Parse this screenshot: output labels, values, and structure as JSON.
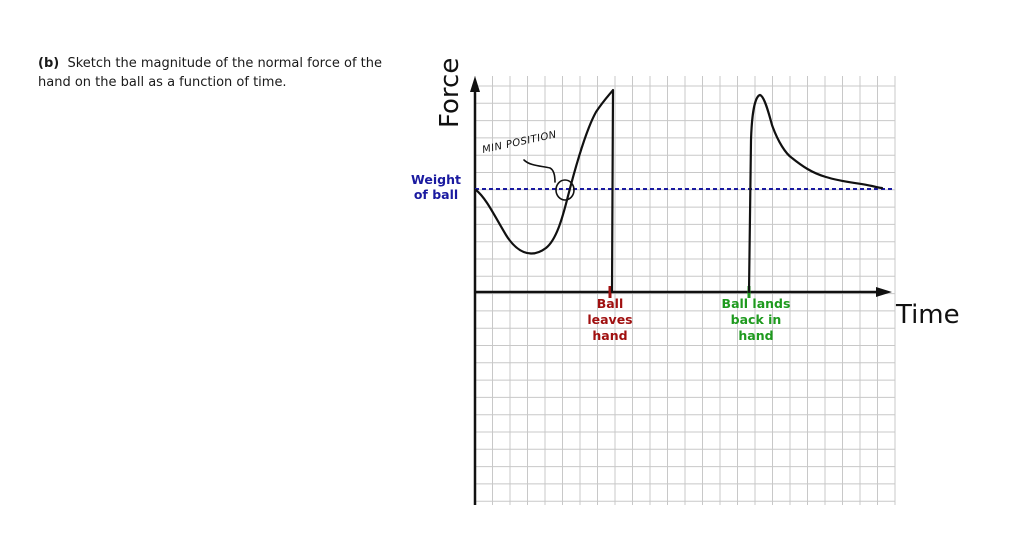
{
  "question": {
    "part": "(b)",
    "text": "Sketch the magnitude of the normal force of the hand on the ball as a function of time."
  },
  "graph": {
    "y_axis_label": "Force",
    "x_axis_label": "Time",
    "weight_label_line1": "Weight",
    "weight_label_line2": "of ball",
    "ball_leaves_line1": "Ball",
    "ball_leaves_line2": "leaves",
    "ball_leaves_line3": "hand",
    "ball_lands_line1": "Ball lands",
    "ball_lands_line2": "back in",
    "ball_lands_line3": "hand",
    "annotation": "MIN POSITION"
  },
  "colors": {
    "grid": "#c8c8c8",
    "axis": "#111111",
    "weight_line": "#1a1aa0",
    "ball_leaves": "#a01010",
    "ball_lands": "#1e9a1e",
    "curve": "#111111"
  }
}
